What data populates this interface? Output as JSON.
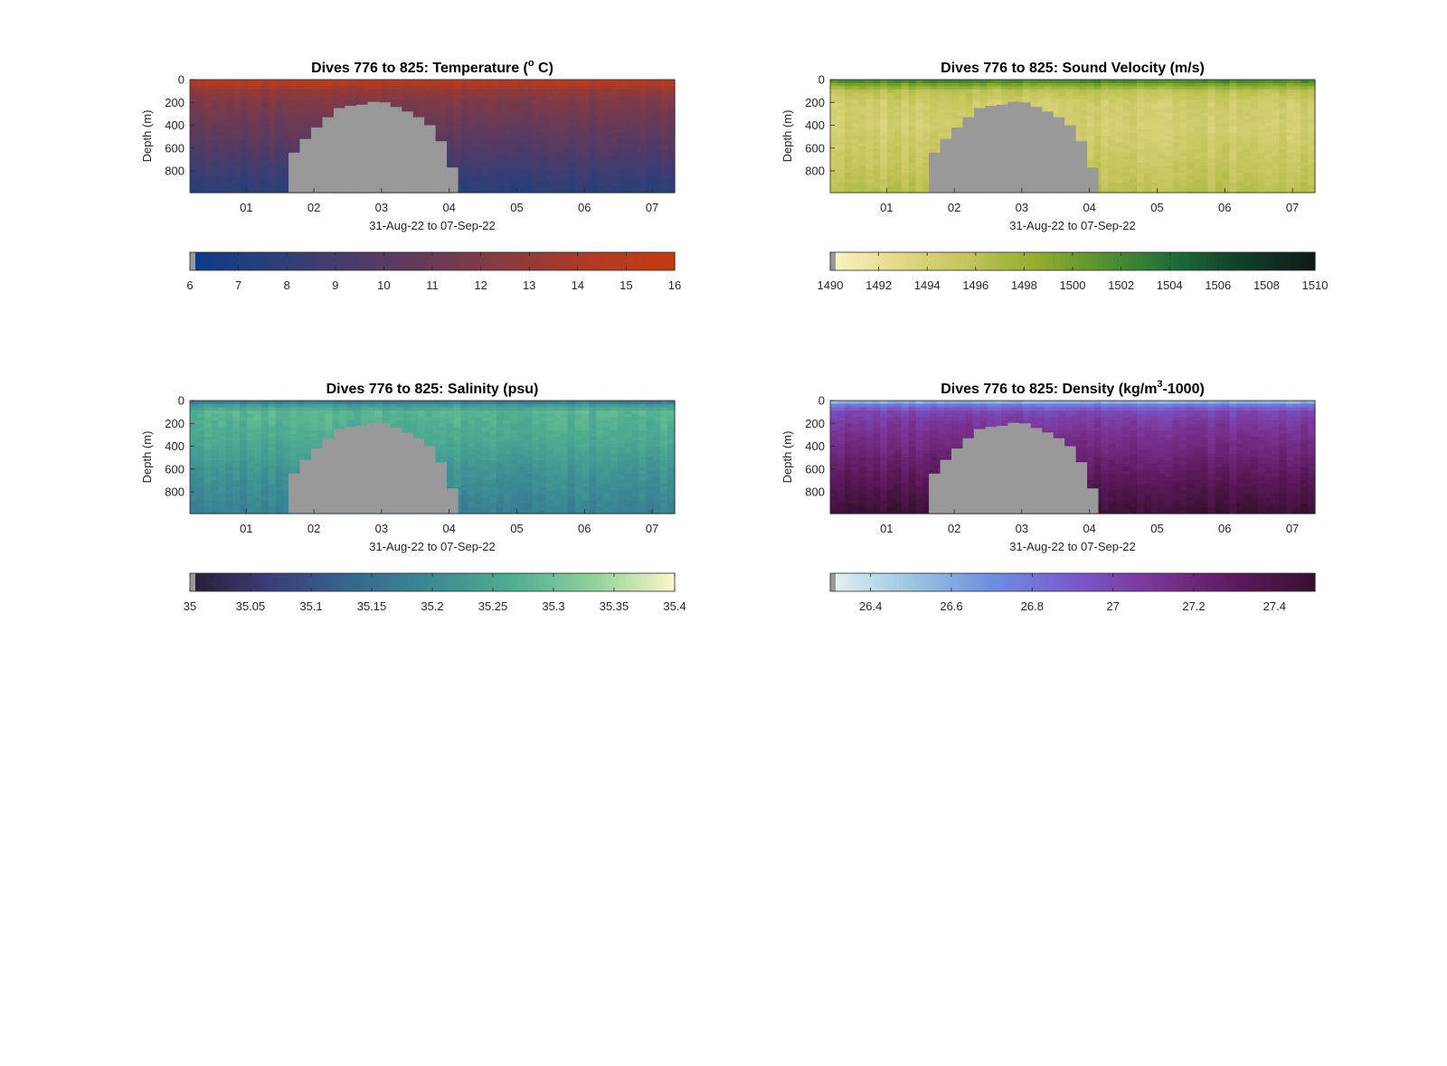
{
  "figure": {
    "panels": [
      {
        "id": "temperature",
        "title_main": "Dives 776 to 825: Temperature (",
        "title_sup": "o",
        "title_tail": " C)",
        "ylabel": "Depth (m)",
        "xlabel": "31-Aug-22 to 07-Sep-22",
        "yticks": [
          "0",
          "200",
          "400",
          "600",
          "800"
        ],
        "xticks": [
          "01",
          "02",
          "03",
          "04",
          "05",
          "06",
          "07"
        ],
        "colorbar_ticks": [
          "6",
          "7",
          "8",
          "9",
          "10",
          "11",
          "12",
          "13",
          "14",
          "15",
          "16"
        ],
        "cmap": "thermal"
      },
      {
        "id": "sound-velocity",
        "title_main": "Dives 776 to 825: Sound Velocity (m/s)",
        "title_sup": "",
        "title_tail": "",
        "ylabel": "Depth (m)",
        "xlabel": "31-Aug-22 to 07-Sep-22",
        "yticks": [
          "0",
          "200",
          "400",
          "600",
          "800"
        ],
        "xticks": [
          "01",
          "02",
          "03",
          "04",
          "05",
          "06",
          "07"
        ],
        "colorbar_ticks": [
          "1490",
          "1492",
          "1494",
          "1496",
          "1498",
          "1500",
          "1502",
          "1504",
          "1506",
          "1508",
          "1510"
        ],
        "cmap": "speed"
      },
      {
        "id": "salinity",
        "title_main": "Dives 776 to 825: Salinity (psu)",
        "title_sup": "",
        "title_tail": "",
        "ylabel": "Depth (m)",
        "xlabel": "31-Aug-22 to 07-Sep-22",
        "yticks": [
          "0",
          "200",
          "400",
          "600",
          "800"
        ],
        "xticks": [
          "01",
          "02",
          "03",
          "04",
          "05",
          "06",
          "07"
        ],
        "colorbar_ticks": [
          "35",
          "35.05",
          "35.1",
          "35.15",
          "35.2",
          "35.25",
          "35.3",
          "35.35",
          "35.4"
        ],
        "cmap": "haline"
      },
      {
        "id": "density",
        "title_main": "Dives 776 to 825: Density (kg/m",
        "title_sup": "3",
        "title_tail": "-1000)",
        "ylabel": "Depth (m)",
        "xlabel": "31-Aug-22 to 07-Sep-22",
        "yticks": [
          "0",
          "200",
          "400",
          "600",
          "800"
        ],
        "xticks": [
          "01",
          "02",
          "03",
          "04",
          "05",
          "06",
          "07"
        ],
        "colorbar_ticks": [
          "26.4",
          "26.6",
          "26.8",
          "27",
          "27.2",
          "27.4"
        ],
        "cmap": "dense"
      }
    ]
  },
  "colormaps": {
    "thermal": [
      "#0a3a8a",
      "#2b3f7a",
      "#4a3b6a",
      "#6b3a55",
      "#8e3a3c",
      "#b13a22",
      "#c73a10"
    ],
    "speed": [
      "#fbf6c8",
      "#e3d985",
      "#c2c45a",
      "#92ad2a",
      "#4f9130",
      "#1b6b3b",
      "#0f3d27",
      "#101a14"
    ],
    "haline": [
      "#2b1d33",
      "#393e7a",
      "#35678f",
      "#3b8b94",
      "#4fae91",
      "#8fd19a",
      "#fbf8c6"
    ],
    "dense": [
      "#e6f2f3",
      "#9ac7e0",
      "#6c8fe0",
      "#7a5ad0",
      "#7b3596",
      "#5e1a5e",
      "#37102e"
    ],
    "no_data": "#999999"
  },
  "chart_data": [
    {
      "type": "heatmap",
      "title": "Dives 776 to 825: Temperature (° C)",
      "xlabel": "31-Aug-22 to 07-Sep-22",
      "ylabel": "Depth (m)",
      "x_range": [
        "31-Aug-22 04:00",
        "07-Sep-22 08:00"
      ],
      "ylim": [
        0,
        990
      ],
      "y_reversed": true,
      "colorbar": {
        "min": 6,
        "max": 16,
        "ticks": [
          6,
          7,
          8,
          9,
          10,
          11,
          12,
          13,
          14,
          15,
          16
        ]
      },
      "profile": {
        "depth": [
          0,
          30,
          100,
          200,
          400,
          600,
          800,
          990
        ],
        "value": [
          15.2,
          14.5,
          12.8,
          11.8,
          10.8,
          9.8,
          8.6,
          7.6
        ]
      },
      "no_data_region": {
        "description": "gray area (no data)",
        "time": [
          "01-Sep-22 15:00",
          "01-Sep-22 19:00",
          "01-Sep-22 23:00",
          "02-Sep-22 03:00",
          "02-Sep-22 07:00",
          "02-Sep-22 11:00",
          "02-Sep-22 15:00",
          "02-Sep-22 19:00",
          "02-Sep-22 23:00",
          "03-Sep-22 03:00",
          "03-Sep-22 07:00",
          "03-Sep-22 11:00",
          "03-Sep-22 15:00",
          "03-Sep-22 19:00",
          "03-Sep-22 23:00"
        ],
        "top_depth": [
          640,
          520,
          420,
          330,
          250,
          230,
          220,
          195,
          200,
          240,
          280,
          330,
          400,
          540,
          770
        ]
      }
    },
    {
      "type": "heatmap",
      "title": "Dives 776 to 825: Sound Velocity (m/s)",
      "xlabel": "31-Aug-22 to 07-Sep-22",
      "ylabel": "Depth (m)",
      "x_range": [
        "31-Aug-22 04:00",
        "07-Sep-22 08:00"
      ],
      "ylim": [
        0,
        990
      ],
      "y_reversed": true,
      "colorbar": {
        "min": 1490,
        "max": 1510,
        "ticks": [
          1490,
          1492,
          1494,
          1496,
          1498,
          1500,
          1502,
          1504,
          1506,
          1508,
          1510
        ]
      },
      "profile": {
        "depth": [
          0,
          30,
          100,
          200,
          400,
          600,
          800,
          990
        ],
        "value": [
          1503.5,
          1500.5,
          1496.0,
          1494.6,
          1494.3,
          1494.9,
          1495.5,
          1496.3
        ]
      },
      "no_data_region": {
        "description": "gray area (no data)",
        "time": [
          "01-Sep-22 15:00",
          "01-Sep-22 19:00",
          "01-Sep-22 23:00",
          "02-Sep-22 03:00",
          "02-Sep-22 07:00",
          "02-Sep-22 11:00",
          "02-Sep-22 15:00",
          "02-Sep-22 19:00",
          "02-Sep-22 23:00",
          "03-Sep-22 03:00",
          "03-Sep-22 07:00",
          "03-Sep-22 11:00",
          "03-Sep-22 15:00",
          "03-Sep-22 19:00",
          "03-Sep-22 23:00"
        ],
        "top_depth": [
          640,
          520,
          420,
          330,
          250,
          230,
          220,
          195,
          200,
          240,
          280,
          330,
          400,
          540,
          770
        ]
      }
    },
    {
      "type": "heatmap",
      "title": "Dives 776 to 825: Salinity (psu)",
      "xlabel": "31-Aug-22 to 07-Sep-22",
      "ylabel": "Depth (m)",
      "x_range": [
        "31-Aug-22 04:00",
        "07-Sep-22 08:00"
      ],
      "ylim": [
        0,
        990
      ],
      "y_reversed": true,
      "colorbar": {
        "min": 35,
        "max": 35.4,
        "ticks": [
          35,
          35.05,
          35.1,
          35.15,
          35.2,
          35.25,
          35.3,
          35.35,
          35.4
        ]
      },
      "profile": {
        "depth": [
          0,
          30,
          100,
          200,
          400,
          600,
          800,
          990
        ],
        "value": [
          35.13,
          35.22,
          35.28,
          35.27,
          35.25,
          35.22,
          35.2,
          35.18
        ]
      },
      "no_data_region": {
        "description": "gray area (no data)",
        "time": [
          "01-Sep-22 15:00",
          "01-Sep-22 19:00",
          "01-Sep-22 23:00",
          "02-Sep-22 03:00",
          "02-Sep-22 07:00",
          "02-Sep-22 11:00",
          "02-Sep-22 15:00",
          "02-Sep-22 19:00",
          "02-Sep-22 23:00",
          "03-Sep-22 03:00",
          "03-Sep-22 07:00",
          "03-Sep-22 11:00",
          "03-Sep-22 15:00",
          "03-Sep-22 19:00",
          "03-Sep-22 23:00"
        ],
        "top_depth": [
          640,
          520,
          420,
          330,
          250,
          230,
          220,
          195,
          200,
          240,
          280,
          330,
          400,
          540,
          770
        ]
      }
    },
    {
      "type": "heatmap",
      "title": "Dives 776 to 825: Density (kg/m³-1000)",
      "xlabel": "31-Aug-22 to 07-Sep-22",
      "ylabel": "Depth (m)",
      "x_range": [
        "31-Aug-22 04:00",
        "07-Sep-22 08:00"
      ],
      "ylim": [
        0,
        990
      ],
      "y_reversed": true,
      "colorbar": {
        "min": 26.3,
        "max": 27.5,
        "ticks": [
          26.4,
          26.6,
          26.8,
          27,
          27.2,
          27.4
        ]
      },
      "profile": {
        "depth": [
          0,
          30,
          100,
          200,
          400,
          600,
          800,
          990
        ],
        "value": [
          26.45,
          26.75,
          27.0,
          27.08,
          27.18,
          27.28,
          27.38,
          27.48
        ]
      },
      "no_data_region": {
        "description": "gray area (no data)",
        "time": [
          "01-Sep-22 15:00",
          "01-Sep-22 19:00",
          "01-Sep-22 23:00",
          "02-Sep-22 03:00",
          "02-Sep-22 07:00",
          "02-Sep-22 11:00",
          "02-Sep-22 15:00",
          "02-Sep-22 19:00",
          "02-Sep-22 23:00",
          "03-Sep-22 03:00",
          "03-Sep-22 07:00",
          "03-Sep-22 11:00",
          "03-Sep-22 15:00",
          "03-Sep-22 19:00",
          "03-Sep-22 23:00"
        ],
        "top_depth": [
          640,
          520,
          420,
          330,
          250,
          230,
          220,
          195,
          200,
          240,
          280,
          330,
          400,
          540,
          770
        ]
      }
    }
  ]
}
